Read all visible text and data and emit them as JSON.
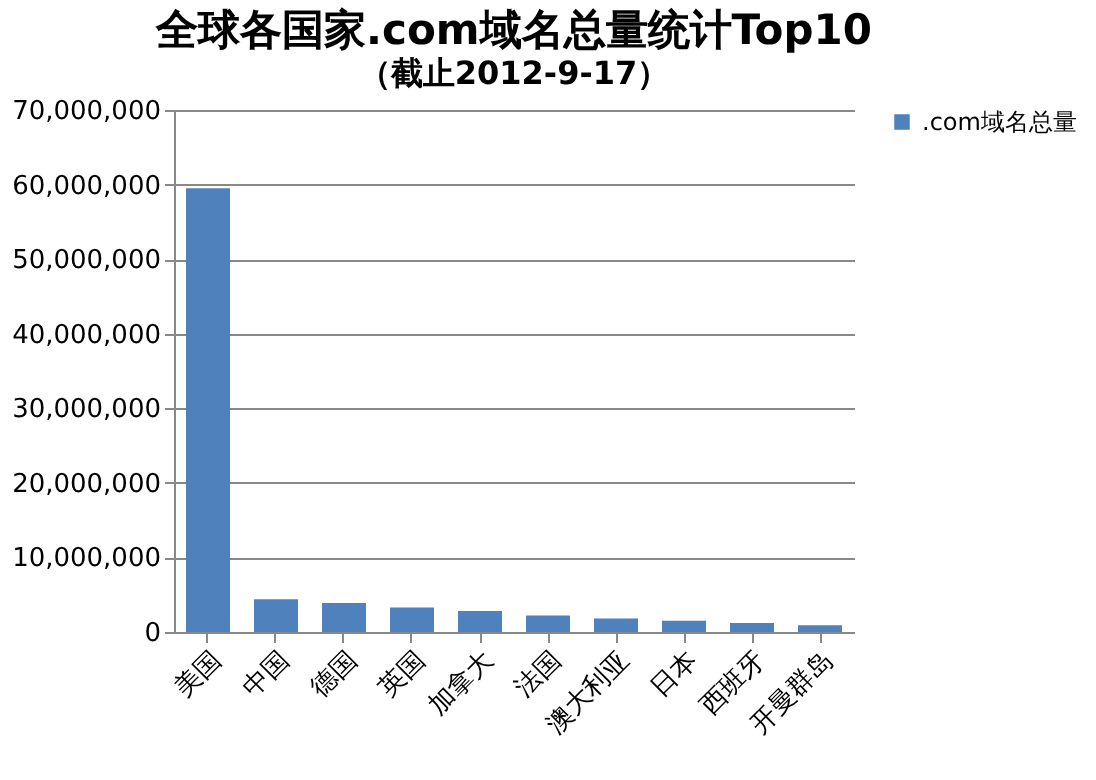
{
  "chart_data": {
    "type": "bar",
    "title": "全球各国家.com域名总量统计Top10",
    "subtitle": "（截止2012-9-17）",
    "categories": [
      "美国",
      "中国",
      "德国",
      "英国",
      "加拿大",
      "法国",
      "澳大利亚",
      "日本",
      "西班牙",
      "开曼群岛"
    ],
    "series": [
      {
        "name": ".com域名总量",
        "color": "#4f81bd",
        "values": [
          59500000,
          4400000,
          3900000,
          3300000,
          2800000,
          2200000,
          1800000,
          1500000,
          1200000,
          900000
        ]
      }
    ],
    "ylim": [
      0,
      70000000
    ],
    "yticks": [
      0,
      {
        "value": 10000000,
        "label": "10,000,000"
      },
      {
        "value": 20000000,
        "label": "20,000,000"
      },
      {
        "value": 30000000,
        "label": "30,000,000"
      },
      {
        "value": 40000000,
        "label": "40,000,000"
      },
      {
        "value": 50000000,
        "label": "50,000,000"
      },
      {
        "value": 60000000,
        "label": "60,000,000"
      },
      {
        "value": 70000000,
        "label": "70,000,000"
      }
    ],
    "grid": "y",
    "legend": "right"
  }
}
